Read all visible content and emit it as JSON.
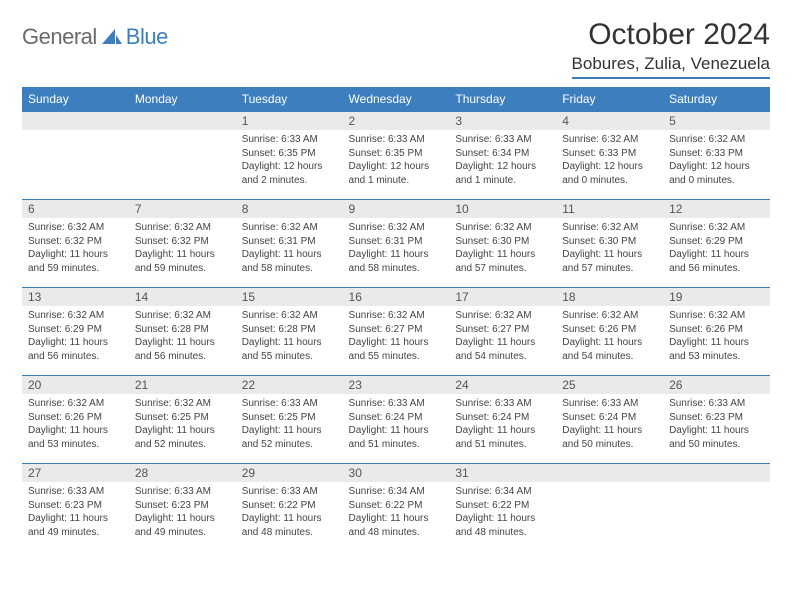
{
  "brand": {
    "word1": "General",
    "word2": "Blue",
    "word1_color": "#6a6a6a",
    "word2_color": "#3d7ebf",
    "icon_color": "#3d7ebf"
  },
  "header": {
    "title": "October 2024",
    "location": "Bobures, Zulia, Venezuela"
  },
  "style": {
    "header_bg": "#3d7ebf",
    "header_fg": "#ffffff",
    "daynum_bg": "#e8eaec",
    "cell_border": "#3d7ebf",
    "text_color": "#444444",
    "body_font_size": 10
  },
  "day_headers": [
    "Sunday",
    "Monday",
    "Tuesday",
    "Wednesday",
    "Thursday",
    "Friday",
    "Saturday"
  ],
  "weeks": [
    [
      null,
      null,
      {
        "n": "1",
        "sr": "Sunrise: 6:33 AM",
        "ss": "Sunset: 6:35 PM",
        "dl": "Daylight: 12 hours and 2 minutes."
      },
      {
        "n": "2",
        "sr": "Sunrise: 6:33 AM",
        "ss": "Sunset: 6:35 PM",
        "dl": "Daylight: 12 hours and 1 minute."
      },
      {
        "n": "3",
        "sr": "Sunrise: 6:33 AM",
        "ss": "Sunset: 6:34 PM",
        "dl": "Daylight: 12 hours and 1 minute."
      },
      {
        "n": "4",
        "sr": "Sunrise: 6:32 AM",
        "ss": "Sunset: 6:33 PM",
        "dl": "Daylight: 12 hours and 0 minutes."
      },
      {
        "n": "5",
        "sr": "Sunrise: 6:32 AM",
        "ss": "Sunset: 6:33 PM",
        "dl": "Daylight: 12 hours and 0 minutes."
      }
    ],
    [
      {
        "n": "6",
        "sr": "Sunrise: 6:32 AM",
        "ss": "Sunset: 6:32 PM",
        "dl": "Daylight: 11 hours and 59 minutes."
      },
      {
        "n": "7",
        "sr": "Sunrise: 6:32 AM",
        "ss": "Sunset: 6:32 PM",
        "dl": "Daylight: 11 hours and 59 minutes."
      },
      {
        "n": "8",
        "sr": "Sunrise: 6:32 AM",
        "ss": "Sunset: 6:31 PM",
        "dl": "Daylight: 11 hours and 58 minutes."
      },
      {
        "n": "9",
        "sr": "Sunrise: 6:32 AM",
        "ss": "Sunset: 6:31 PM",
        "dl": "Daylight: 11 hours and 58 minutes."
      },
      {
        "n": "10",
        "sr": "Sunrise: 6:32 AM",
        "ss": "Sunset: 6:30 PM",
        "dl": "Daylight: 11 hours and 57 minutes."
      },
      {
        "n": "11",
        "sr": "Sunrise: 6:32 AM",
        "ss": "Sunset: 6:30 PM",
        "dl": "Daylight: 11 hours and 57 minutes."
      },
      {
        "n": "12",
        "sr": "Sunrise: 6:32 AM",
        "ss": "Sunset: 6:29 PM",
        "dl": "Daylight: 11 hours and 56 minutes."
      }
    ],
    [
      {
        "n": "13",
        "sr": "Sunrise: 6:32 AM",
        "ss": "Sunset: 6:29 PM",
        "dl": "Daylight: 11 hours and 56 minutes."
      },
      {
        "n": "14",
        "sr": "Sunrise: 6:32 AM",
        "ss": "Sunset: 6:28 PM",
        "dl": "Daylight: 11 hours and 56 minutes."
      },
      {
        "n": "15",
        "sr": "Sunrise: 6:32 AM",
        "ss": "Sunset: 6:28 PM",
        "dl": "Daylight: 11 hours and 55 minutes."
      },
      {
        "n": "16",
        "sr": "Sunrise: 6:32 AM",
        "ss": "Sunset: 6:27 PM",
        "dl": "Daylight: 11 hours and 55 minutes."
      },
      {
        "n": "17",
        "sr": "Sunrise: 6:32 AM",
        "ss": "Sunset: 6:27 PM",
        "dl": "Daylight: 11 hours and 54 minutes."
      },
      {
        "n": "18",
        "sr": "Sunrise: 6:32 AM",
        "ss": "Sunset: 6:26 PM",
        "dl": "Daylight: 11 hours and 54 minutes."
      },
      {
        "n": "19",
        "sr": "Sunrise: 6:32 AM",
        "ss": "Sunset: 6:26 PM",
        "dl": "Daylight: 11 hours and 53 minutes."
      }
    ],
    [
      {
        "n": "20",
        "sr": "Sunrise: 6:32 AM",
        "ss": "Sunset: 6:26 PM",
        "dl": "Daylight: 11 hours and 53 minutes."
      },
      {
        "n": "21",
        "sr": "Sunrise: 6:32 AM",
        "ss": "Sunset: 6:25 PM",
        "dl": "Daylight: 11 hours and 52 minutes."
      },
      {
        "n": "22",
        "sr": "Sunrise: 6:33 AM",
        "ss": "Sunset: 6:25 PM",
        "dl": "Daylight: 11 hours and 52 minutes."
      },
      {
        "n": "23",
        "sr": "Sunrise: 6:33 AM",
        "ss": "Sunset: 6:24 PM",
        "dl": "Daylight: 11 hours and 51 minutes."
      },
      {
        "n": "24",
        "sr": "Sunrise: 6:33 AM",
        "ss": "Sunset: 6:24 PM",
        "dl": "Daylight: 11 hours and 51 minutes."
      },
      {
        "n": "25",
        "sr": "Sunrise: 6:33 AM",
        "ss": "Sunset: 6:24 PM",
        "dl": "Daylight: 11 hours and 50 minutes."
      },
      {
        "n": "26",
        "sr": "Sunrise: 6:33 AM",
        "ss": "Sunset: 6:23 PM",
        "dl": "Daylight: 11 hours and 50 minutes."
      }
    ],
    [
      {
        "n": "27",
        "sr": "Sunrise: 6:33 AM",
        "ss": "Sunset: 6:23 PM",
        "dl": "Daylight: 11 hours and 49 minutes."
      },
      {
        "n": "28",
        "sr": "Sunrise: 6:33 AM",
        "ss": "Sunset: 6:23 PM",
        "dl": "Daylight: 11 hours and 49 minutes."
      },
      {
        "n": "29",
        "sr": "Sunrise: 6:33 AM",
        "ss": "Sunset: 6:22 PM",
        "dl": "Daylight: 11 hours and 48 minutes."
      },
      {
        "n": "30",
        "sr": "Sunrise: 6:34 AM",
        "ss": "Sunset: 6:22 PM",
        "dl": "Daylight: 11 hours and 48 minutes."
      },
      {
        "n": "31",
        "sr": "Sunrise: 6:34 AM",
        "ss": "Sunset: 6:22 PM",
        "dl": "Daylight: 11 hours and 48 minutes."
      },
      null,
      null
    ]
  ]
}
